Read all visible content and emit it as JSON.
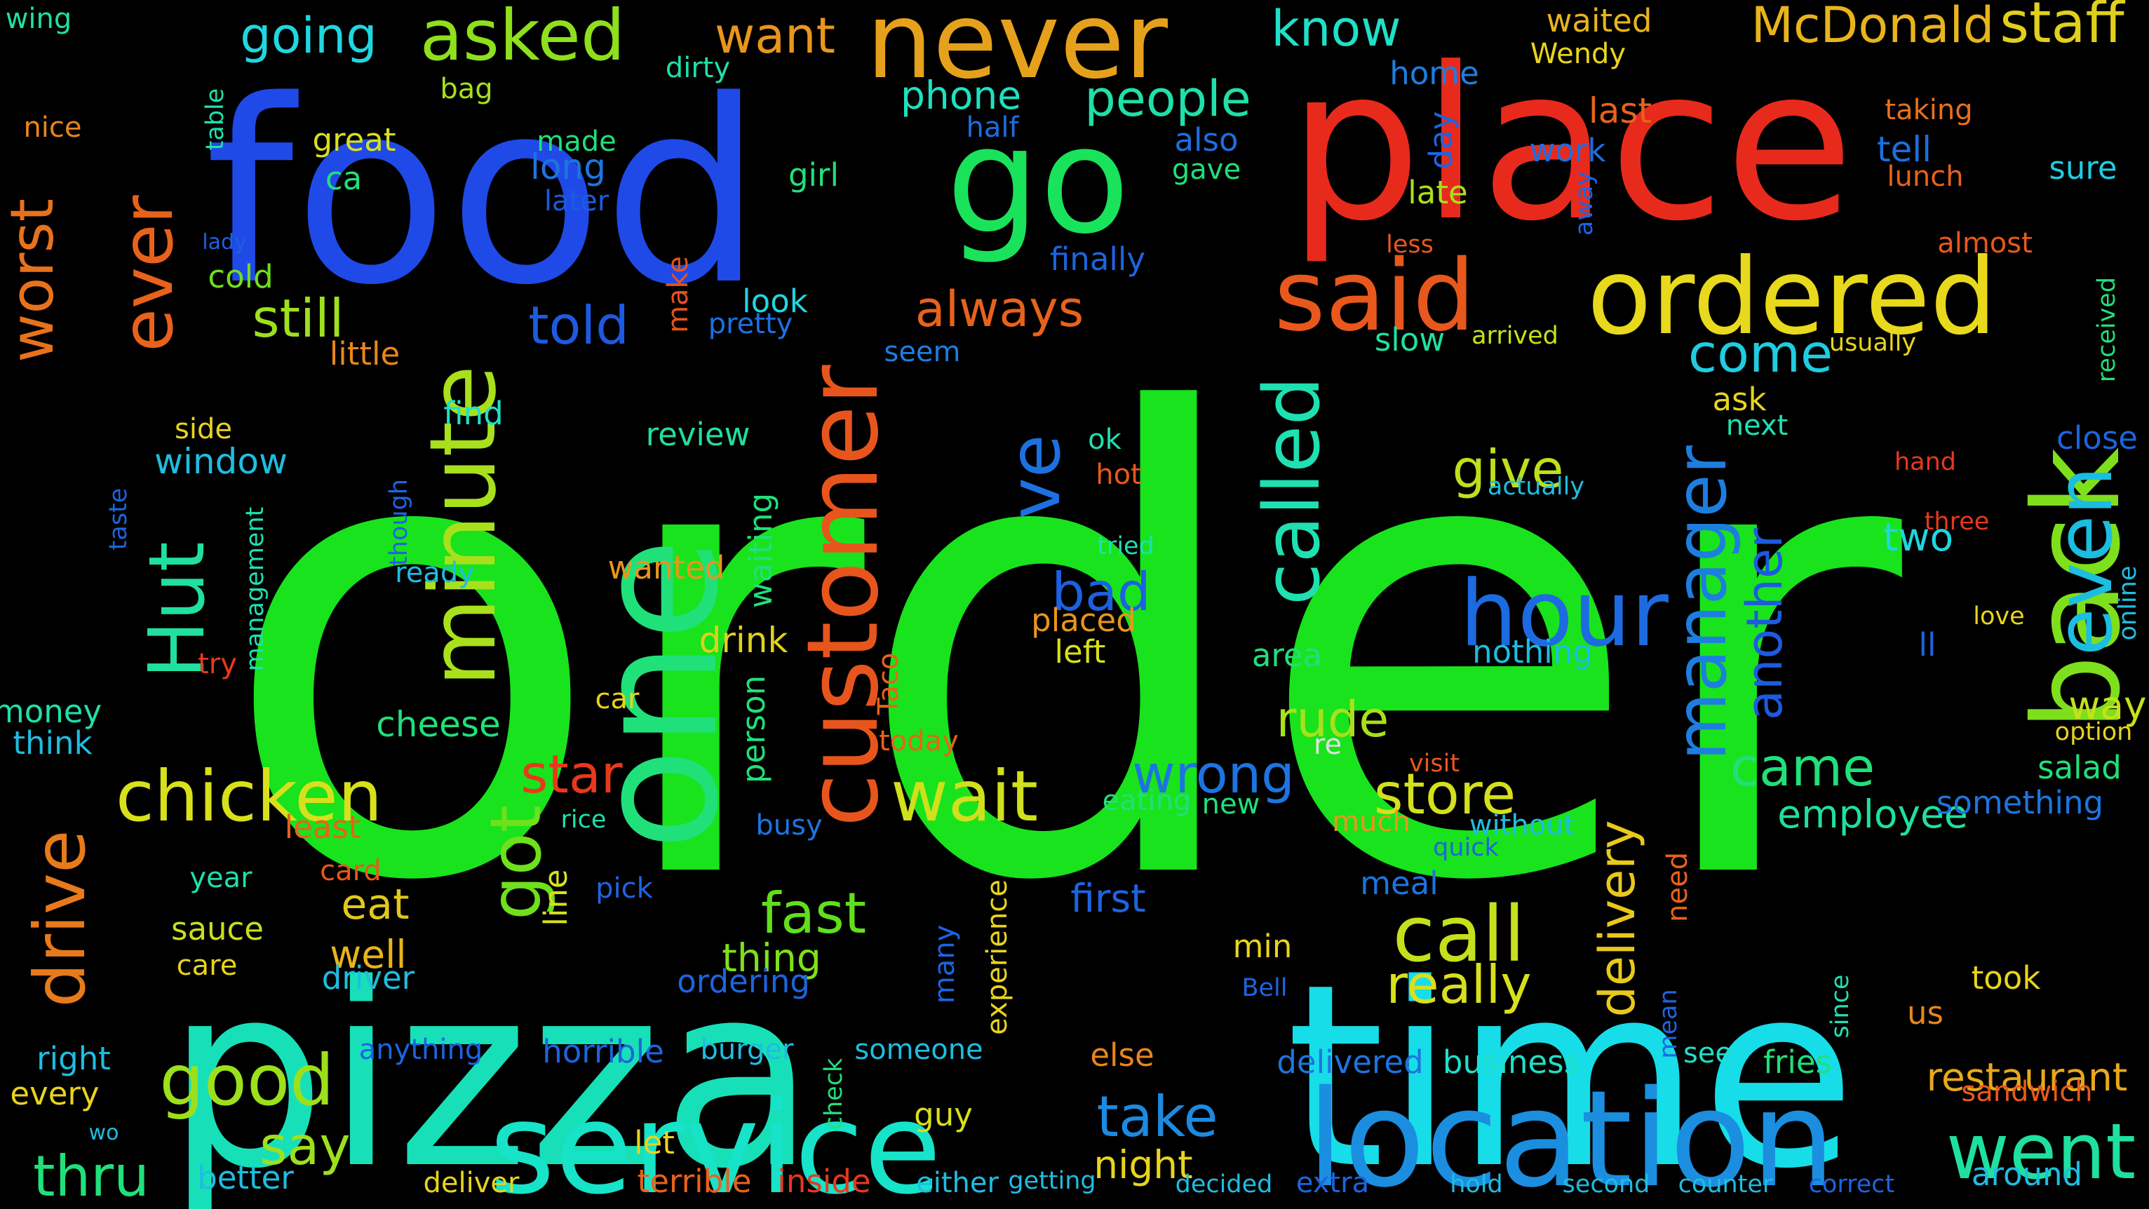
{
  "word_cloud": {
    "words": [
      {
        "text": "order",
        "color": "#19e31c"
      },
      {
        "text": "pizza",
        "color": "#17e0b8"
      },
      {
        "text": "time",
        "color": "#17dde8"
      },
      {
        "text": "food",
        "color": "#1f4ae8"
      },
      {
        "text": "place",
        "color": "#e82a1c"
      },
      {
        "text": "location",
        "color": "#1b8ee0"
      },
      {
        "text": "service",
        "color": "#17e3c8"
      },
      {
        "text": "one",
        "color": "#20e07a"
      },
      {
        "text": "go",
        "color": "#19e35a"
      },
      {
        "text": "never",
        "color": "#e6a11c"
      },
      {
        "text": "ordered",
        "color": "#e8d91c"
      },
      {
        "text": "said",
        "color": "#e8581c"
      },
      {
        "text": "back",
        "color": "#7ee01c"
      },
      {
        "text": "customer",
        "color": "#e8551c"
      },
      {
        "text": "minute",
        "color": "#a8e01c"
      },
      {
        "text": "hour",
        "color": "#1d6be0"
      },
      {
        "text": "called",
        "color": "#1fe0b0"
      },
      {
        "text": "even",
        "color": "#1bbde0"
      },
      {
        "text": "manager",
        "color": "#1d7ee0"
      },
      {
        "text": "call",
        "color": "#c5e01c"
      },
      {
        "text": "went",
        "color": "#1fe0a0"
      },
      {
        "text": "good",
        "color": "#9ce01c"
      },
      {
        "text": "chicken",
        "color": "#d8e01c"
      },
      {
        "text": "drive",
        "color": "#e87a1c"
      },
      {
        "text": "Hut",
        "color": "#20e0a0"
      },
      {
        "text": "wait",
        "color": "#d0e01c"
      },
      {
        "text": "got",
        "color": "#6ee01c"
      },
      {
        "text": "ever",
        "color": "#e8621c"
      },
      {
        "text": "worst",
        "color": "#e8721c"
      },
      {
        "text": "asked",
        "color": "#8ee01c"
      },
      {
        "text": "staff",
        "color": "#e0d01c"
      },
      {
        "text": "McDonald",
        "color": "#e8b41c"
      },
      {
        "text": "ve",
        "color": "#1d70e0"
      },
      {
        "text": "fast",
        "color": "#60e01c"
      },
      {
        "text": "thru",
        "color": "#20e07a"
      },
      {
        "text": "take",
        "color": "#1d8ae0"
      },
      {
        "text": "store",
        "color": "#d4e01c"
      },
      {
        "text": "wrong",
        "color": "#1d74e0"
      },
      {
        "text": "really",
        "color": "#d8e01c"
      },
      {
        "text": "delivery",
        "color": "#e8c81c"
      },
      {
        "text": "came",
        "color": "#20e07a"
      },
      {
        "text": "another",
        "color": "#1d5ae0"
      },
      {
        "text": "people",
        "color": "#1fe0a8"
      },
      {
        "text": "want",
        "color": "#e8961c"
      },
      {
        "text": "know",
        "color": "#1fe0c8"
      },
      {
        "text": "going",
        "color": "#20d6e0"
      },
      {
        "text": "always",
        "color": "#e8621c"
      },
      {
        "text": "told",
        "color": "#1d5ae0"
      },
      {
        "text": "still",
        "color": "#9ee01c"
      },
      {
        "text": "come",
        "color": "#1fcde0"
      },
      {
        "text": "give",
        "color": "#bde01c"
      },
      {
        "text": "bad",
        "color": "#1d60e0"
      },
      {
        "text": "rude",
        "color": "#a8e01c"
      },
      {
        "text": "star",
        "color": "#e8381c"
      },
      {
        "text": "say",
        "color": "#9ee01c"
      },
      {
        "text": "eat",
        "color": "#e0c81c"
      },
      {
        "text": "well",
        "color": "#e8b41c"
      },
      {
        "text": "employee",
        "color": "#1fe0a0"
      },
      {
        "text": "restaurant",
        "color": "#e8a81c"
      },
      {
        "text": "night",
        "color": "#e8d41c"
      },
      {
        "text": "first",
        "color": "#1d64e0"
      },
      {
        "text": "thing",
        "color": "#7ee01c"
      },
      {
        "text": "phone",
        "color": "#1fe0c0"
      },
      {
        "text": "two",
        "color": "#1fd6e0"
      },
      {
        "text": "way",
        "color": "#c8e01c"
      },
      {
        "text": "waited",
        "color": "#e8b41c"
      },
      {
        "text": "Wendy",
        "color": "#e8d41c"
      },
      {
        "text": "last",
        "color": "#e8621c"
      },
      {
        "text": "tell",
        "color": "#1d6ee0"
      },
      {
        "text": "sure",
        "color": "#1fcde0"
      },
      {
        "text": "taking",
        "color": "#e8701c"
      },
      {
        "text": "lunch",
        "color": "#e8621c"
      },
      {
        "text": "home",
        "color": "#1d7ee0"
      },
      {
        "text": "work",
        "color": "#1d6ee0"
      },
      {
        "text": "late",
        "color": "#a8e01c"
      },
      {
        "text": "day",
        "color": "#1d64e0"
      },
      {
        "text": "away",
        "color": "#1d64e0"
      },
      {
        "text": "also",
        "color": "#1d6ee0"
      },
      {
        "text": "gave",
        "color": "#20e07a"
      },
      {
        "text": "half",
        "color": "#1d6ee0"
      },
      {
        "text": "finally",
        "color": "#1d64e0"
      },
      {
        "text": "less",
        "color": "#e8581c"
      },
      {
        "text": "almost",
        "color": "#e8581c"
      },
      {
        "text": "received",
        "color": "#20e07a"
      },
      {
        "text": "usually",
        "color": "#e8d41c"
      },
      {
        "text": "arrived",
        "color": "#c8e01c"
      },
      {
        "text": "slow",
        "color": "#1fe0a0"
      },
      {
        "text": "seem",
        "color": "#1d7ee0"
      },
      {
        "text": "pretty",
        "color": "#1d70e0"
      },
      {
        "text": "look",
        "color": "#1fd6e0"
      },
      {
        "text": "make",
        "color": "#e8521c"
      },
      {
        "text": "girl",
        "color": "#20e07a"
      },
      {
        "text": "long",
        "color": "#1d74e0"
      },
      {
        "text": "later",
        "color": "#1d5ae0"
      },
      {
        "text": "made",
        "color": "#20e07a"
      },
      {
        "text": "great",
        "color": "#d8e01c"
      },
      {
        "text": "ca",
        "color": "#20e07a"
      },
      {
        "text": "dirty",
        "color": "#1fe0a8"
      },
      {
        "text": "bag",
        "color": "#a8e01c"
      },
      {
        "text": "table",
        "color": "#1fe0a8"
      },
      {
        "text": "wing",
        "color": "#1fe0a0"
      },
      {
        "text": "nice",
        "color": "#e8861c"
      },
      {
        "text": "lady",
        "color": "#1d60e0"
      },
      {
        "text": "cold",
        "color": "#6ee01c"
      },
      {
        "text": "little",
        "color": "#e8861c"
      },
      {
        "text": "find",
        "color": "#1fe0c8"
      },
      {
        "text": "side",
        "color": "#e8d41c"
      },
      {
        "text": "window",
        "color": "#1fbde0"
      },
      {
        "text": "management",
        "color": "#1fe0b0"
      },
      {
        "text": "taste",
        "color": "#1d64e0"
      },
      {
        "text": "though",
        "color": "#1d64e0"
      },
      {
        "text": "try",
        "color": "#e8381c"
      },
      {
        "text": "ready",
        "color": "#1fbde0"
      },
      {
        "text": "wanted",
        "color": "#e8961c"
      },
      {
        "text": "review",
        "color": "#20e0a0"
      },
      {
        "text": "waiting",
        "color": "#20e07a"
      },
      {
        "text": "drink",
        "color": "#e0d01c"
      },
      {
        "text": "person",
        "color": "#20e07a"
      },
      {
        "text": "Taco",
        "color": "#e8621c"
      },
      {
        "text": "today",
        "color": "#e8621c"
      },
      {
        "text": "car",
        "color": "#e8d41c"
      },
      {
        "text": "cheese",
        "color": "#20e07a"
      },
      {
        "text": "money",
        "color": "#1fe0a8"
      },
      {
        "text": "think",
        "color": "#1fbde0"
      },
      {
        "text": "least",
        "color": "#e8621c"
      },
      {
        "text": "rice",
        "color": "#1fe0a8"
      },
      {
        "text": "busy",
        "color": "#1d74e0"
      },
      {
        "text": "card",
        "color": "#e8581c"
      },
      {
        "text": "year",
        "color": "#1fe0a8"
      },
      {
        "text": "pick",
        "color": "#1d64e0"
      },
      {
        "text": "line",
        "color": "#d8e01c"
      },
      {
        "text": "sauce",
        "color": "#c8e01c"
      },
      {
        "text": "care",
        "color": "#e8d41c"
      },
      {
        "text": "driver",
        "color": "#1fbde0"
      },
      {
        "text": "ordering",
        "color": "#1d64e0"
      },
      {
        "text": "many",
        "color": "#1d64e0"
      },
      {
        "text": "experience",
        "color": "#e8d41c"
      },
      {
        "text": "hot",
        "color": "#e8581c"
      },
      {
        "text": "ok",
        "color": "#1fe0b0"
      },
      {
        "text": "tried",
        "color": "#1fe0b0"
      },
      {
        "text": "placed",
        "color": "#e8961c"
      },
      {
        "text": "left",
        "color": "#d8e01c"
      },
      {
        "text": "area",
        "color": "#20e07a"
      },
      {
        "text": "nothing",
        "color": "#1fbde0"
      },
      {
        "text": "re",
        "color": "#e0e0e0"
      },
      {
        "text": "eating",
        "color": "#20e07a"
      },
      {
        "text": "new",
        "color": "#20e07a"
      },
      {
        "text": "much",
        "color": "#e8961c"
      },
      {
        "text": "without",
        "color": "#1fbde0"
      },
      {
        "text": "quick",
        "color": "#1d64e0"
      },
      {
        "text": "meal",
        "color": "#1d74e0"
      },
      {
        "text": "need",
        "color": "#e8621c"
      },
      {
        "text": "min",
        "color": "#e8d41c"
      },
      {
        "text": "Bell",
        "color": "#1d64e0"
      },
      {
        "text": "visit",
        "color": "#e8581c"
      },
      {
        "text": "ask",
        "color": "#e8d41c"
      },
      {
        "text": "next",
        "color": "#1fe0b0"
      },
      {
        "text": "actually",
        "color": "#1fbde0"
      },
      {
        "text": "close",
        "color": "#1d64e0"
      },
      {
        "text": "hand",
        "color": "#e8381c"
      },
      {
        "text": "three",
        "color": "#e8381c"
      },
      {
        "text": "online",
        "color": "#1fbde0"
      },
      {
        "text": "love",
        "color": "#e8d41c"
      },
      {
        "text": "ll",
        "color": "#1d64e0"
      },
      {
        "text": "option",
        "color": "#e8d41c"
      },
      {
        "text": "salad",
        "color": "#20e07a"
      },
      {
        "text": "something",
        "color": "#1d74e0"
      },
      {
        "text": "took",
        "color": "#e8d41c"
      },
      {
        "text": "us",
        "color": "#e8861c"
      },
      {
        "text": "mean",
        "color": "#1d64e0"
      },
      {
        "text": "since",
        "color": "#1fe0b0"
      },
      {
        "text": "see",
        "color": "#1fe0c8"
      },
      {
        "text": "fries",
        "color": "#20e07a"
      },
      {
        "text": "business",
        "color": "#1fe0c8"
      },
      {
        "text": "delivered",
        "color": "#1d74e0"
      },
      {
        "text": "else",
        "color": "#e8861c"
      },
      {
        "text": "sandwich",
        "color": "#e8581c"
      },
      {
        "text": "around",
        "color": "#1fbde0"
      },
      {
        "text": "correct",
        "color": "#1d64e0"
      },
      {
        "text": "counter",
        "color": "#1fbde0"
      },
      {
        "text": "second",
        "color": "#1fbde0"
      },
      {
        "text": "hold",
        "color": "#1fbde0"
      },
      {
        "text": "extra",
        "color": "#1d64e0"
      },
      {
        "text": "decided",
        "color": "#1fbde0"
      },
      {
        "text": "getting",
        "color": "#1fbde0"
      },
      {
        "text": "either",
        "color": "#1fbde0"
      },
      {
        "text": "inside",
        "color": "#e8381c"
      },
      {
        "text": "terrible",
        "color": "#e8621c"
      },
      {
        "text": "deliver",
        "color": "#e8d41c"
      },
      {
        "text": "let",
        "color": "#e8d41c"
      },
      {
        "text": "guy",
        "color": "#d8e01c"
      },
      {
        "text": "someone",
        "color": "#1fbde0"
      },
      {
        "text": "check",
        "color": "#20e07a"
      },
      {
        "text": "burger",
        "color": "#1fbde0"
      },
      {
        "text": "horrible",
        "color": "#1d64e0"
      },
      {
        "text": "anything",
        "color": "#1d64e0"
      },
      {
        "text": "better",
        "color": "#1fbde0"
      },
      {
        "text": "right",
        "color": "#1fbde0"
      },
      {
        "text": "every",
        "color": "#e8d41c"
      },
      {
        "text": "wo",
        "color": "#1fbde0"
      }
    ]
  }
}
